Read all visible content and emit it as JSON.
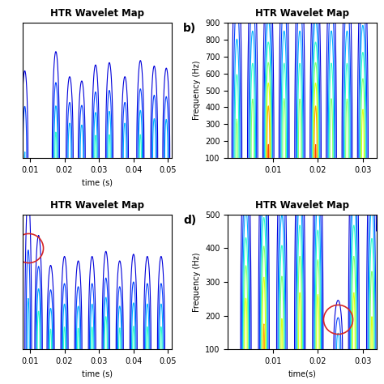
{
  "chart_data": [
    {
      "type": "contour",
      "title": "HTR Wavelet Map",
      "xlabel": "time (s)",
      "xlim": [
        0.008,
        0.051
      ],
      "ylim": [
        100,
        900
      ],
      "xticks": [
        0.01,
        0.02,
        0.03,
        0.04,
        0.05
      ],
      "tick_labels": "x",
      "bursts": [
        {
          "time": 0.0085,
          "freq_span": 450,
          "amplitude": 0.3
        },
        {
          "time": 0.0175,
          "freq_span": 480,
          "amplitude": 0.45
        },
        {
          "time": 0.0215,
          "freq_span": 380,
          "amplitude": 0.4
        },
        {
          "time": 0.025,
          "freq_span": 360,
          "amplitude": 0.4
        },
        {
          "time": 0.029,
          "freq_span": 420,
          "amplitude": 0.45
        },
        {
          "time": 0.033,
          "freq_span": 430,
          "amplitude": 0.45
        },
        {
          "time": 0.0375,
          "freq_span": 380,
          "amplitude": 0.4
        },
        {
          "time": 0.042,
          "freq_span": 440,
          "amplitude": 0.45
        },
        {
          "time": 0.046,
          "freq_span": 430,
          "amplitude": 0.4
        },
        {
          "time": 0.0495,
          "freq_span": 420,
          "amplitude": 0.4
        }
      ]
    },
    {
      "type": "contour",
      "title": "HTR Wavelet Map",
      "ylabel": "Frequency (Hz)",
      "annotations": [
        "b)"
      ],
      "xlim": [
        0,
        0.033
      ],
      "ylim": [
        100,
        900
      ],
      "xticks": [
        0.01,
        0.02,
        0.03
      ],
      "yticks": [
        100,
        200,
        300,
        400,
        500,
        600,
        700,
        800,
        900
      ],
      "bursts": [
        {
          "time": 0.002,
          "freq_span": 900,
          "amplitude": 0.55
        },
        {
          "time": 0.0055,
          "freq_span": 900,
          "amplitude": 0.6
        },
        {
          "time": 0.009,
          "freq_span": 800,
          "amplitude": 0.85
        },
        {
          "time": 0.0125,
          "freq_span": 900,
          "amplitude": 0.6
        },
        {
          "time": 0.016,
          "freq_span": 900,
          "amplitude": 0.6
        },
        {
          "time": 0.0195,
          "freq_span": 800,
          "amplitude": 0.85
        },
        {
          "time": 0.023,
          "freq_span": 900,
          "amplitude": 0.6
        },
        {
          "time": 0.0265,
          "freq_span": 900,
          "amplitude": 0.6
        },
        {
          "time": 0.03,
          "freq_span": 850,
          "amplitude": 0.7
        }
      ]
    },
    {
      "type": "contour",
      "title": "HTR Wavelet Map",
      "xlabel": "time (s)",
      "xlim": [
        0.008,
        0.051
      ],
      "ylim": [
        100,
        900
      ],
      "xticks": [
        0.01,
        0.02,
        0.03,
        0.04,
        0.05
      ],
      "tick_labels": "x",
      "highlight": {
        "time": 0.0095,
        "freq": 700
      },
      "bursts": [
        {
          "time": 0.0095,
          "freq_span": 750,
          "amplitude": 0.35
        },
        {
          "time": 0.0125,
          "freq_span": 500,
          "amplitude": 0.5
        },
        {
          "time": 0.016,
          "freq_span": 380,
          "amplitude": 0.45
        },
        {
          "time": 0.02,
          "freq_span": 420,
          "amplitude": 0.45
        },
        {
          "time": 0.024,
          "freq_span": 400,
          "amplitude": 0.45
        },
        {
          "time": 0.028,
          "freq_span": 420,
          "amplitude": 0.45
        },
        {
          "time": 0.032,
          "freq_span": 430,
          "amplitude": 0.5
        },
        {
          "time": 0.036,
          "freq_span": 400,
          "amplitude": 0.45
        },
        {
          "time": 0.04,
          "freq_span": 430,
          "amplitude": 0.45
        },
        {
          "time": 0.044,
          "freq_span": 420,
          "amplitude": 0.45
        },
        {
          "time": 0.048,
          "freq_span": 420,
          "amplitude": 0.45
        }
      ]
    },
    {
      "type": "contour",
      "title": "HTR Wavelet Map",
      "xlabel": "time(s)",
      "ylabel": "Frequency (Hz)",
      "annotations": [
        "d)"
      ],
      "xlim": [
        0,
        0.033
      ],
      "ylim": [
        100,
        500
      ],
      "xticks": [
        0.01,
        0.02,
        0.03
      ],
      "yticks": [
        100,
        200,
        300,
        400,
        500
      ],
      "highlight": {
        "time": 0.0245,
        "freq": 190
      },
      "bursts": [
        {
          "time": 0.004,
          "freq_span": 450,
          "amplitude": 0.7
        },
        {
          "time": 0.008,
          "freq_span": 500,
          "amplitude": 0.75
        },
        {
          "time": 0.012,
          "freq_span": 450,
          "amplitude": 0.65
        },
        {
          "time": 0.016,
          "freq_span": 500,
          "amplitude": 0.7
        },
        {
          "time": 0.02,
          "freq_span": 480,
          "amplitude": 0.7
        },
        {
          "time": 0.0245,
          "freq_span": 120,
          "amplitude": 0.35
        },
        {
          "time": 0.028,
          "freq_span": 500,
          "amplitude": 0.7
        },
        {
          "time": 0.032,
          "freq_span": 480,
          "amplitude": 0.65
        }
      ]
    }
  ]
}
